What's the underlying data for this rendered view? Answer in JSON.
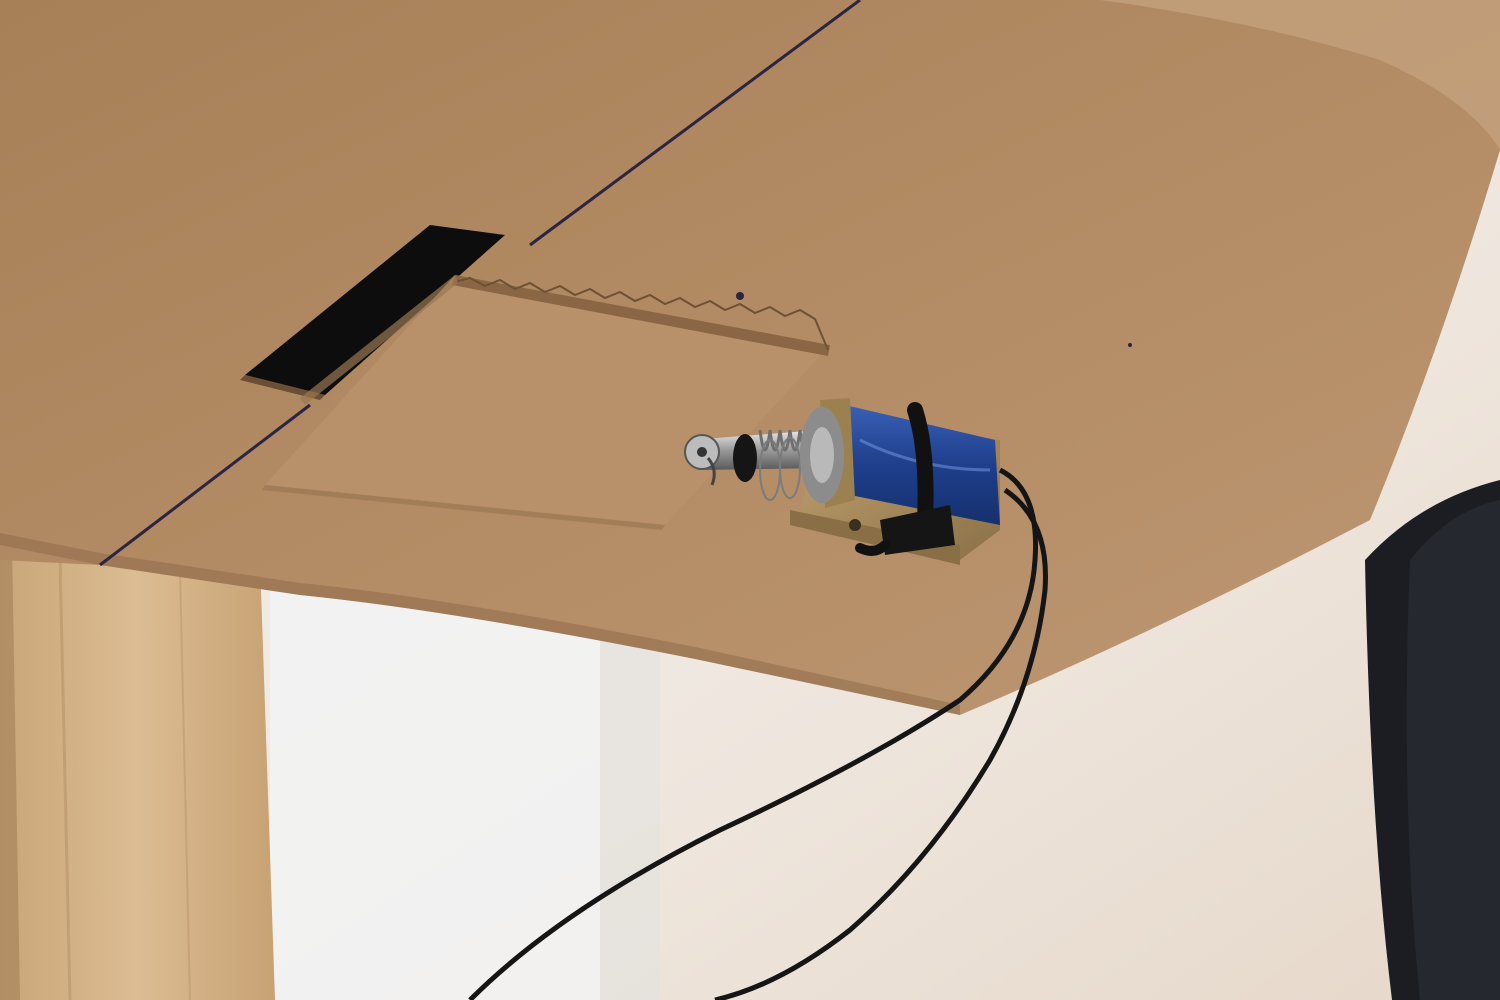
{
  "scene": {
    "background_color": "#eee7df",
    "cardboard_color": "#b38b64",
    "patch_color": "#b8906a",
    "wood_color": "#d6b48a",
    "solenoid_coil_color": "#1f3f8c",
    "solenoid_frame_color": "#a58a5c",
    "wire_color": "#151515",
    "slot_color": "#0d0d0d",
    "icons": [
      "solenoid-lock-icon",
      "cable-tie-icon",
      "wire-icon"
    ]
  }
}
